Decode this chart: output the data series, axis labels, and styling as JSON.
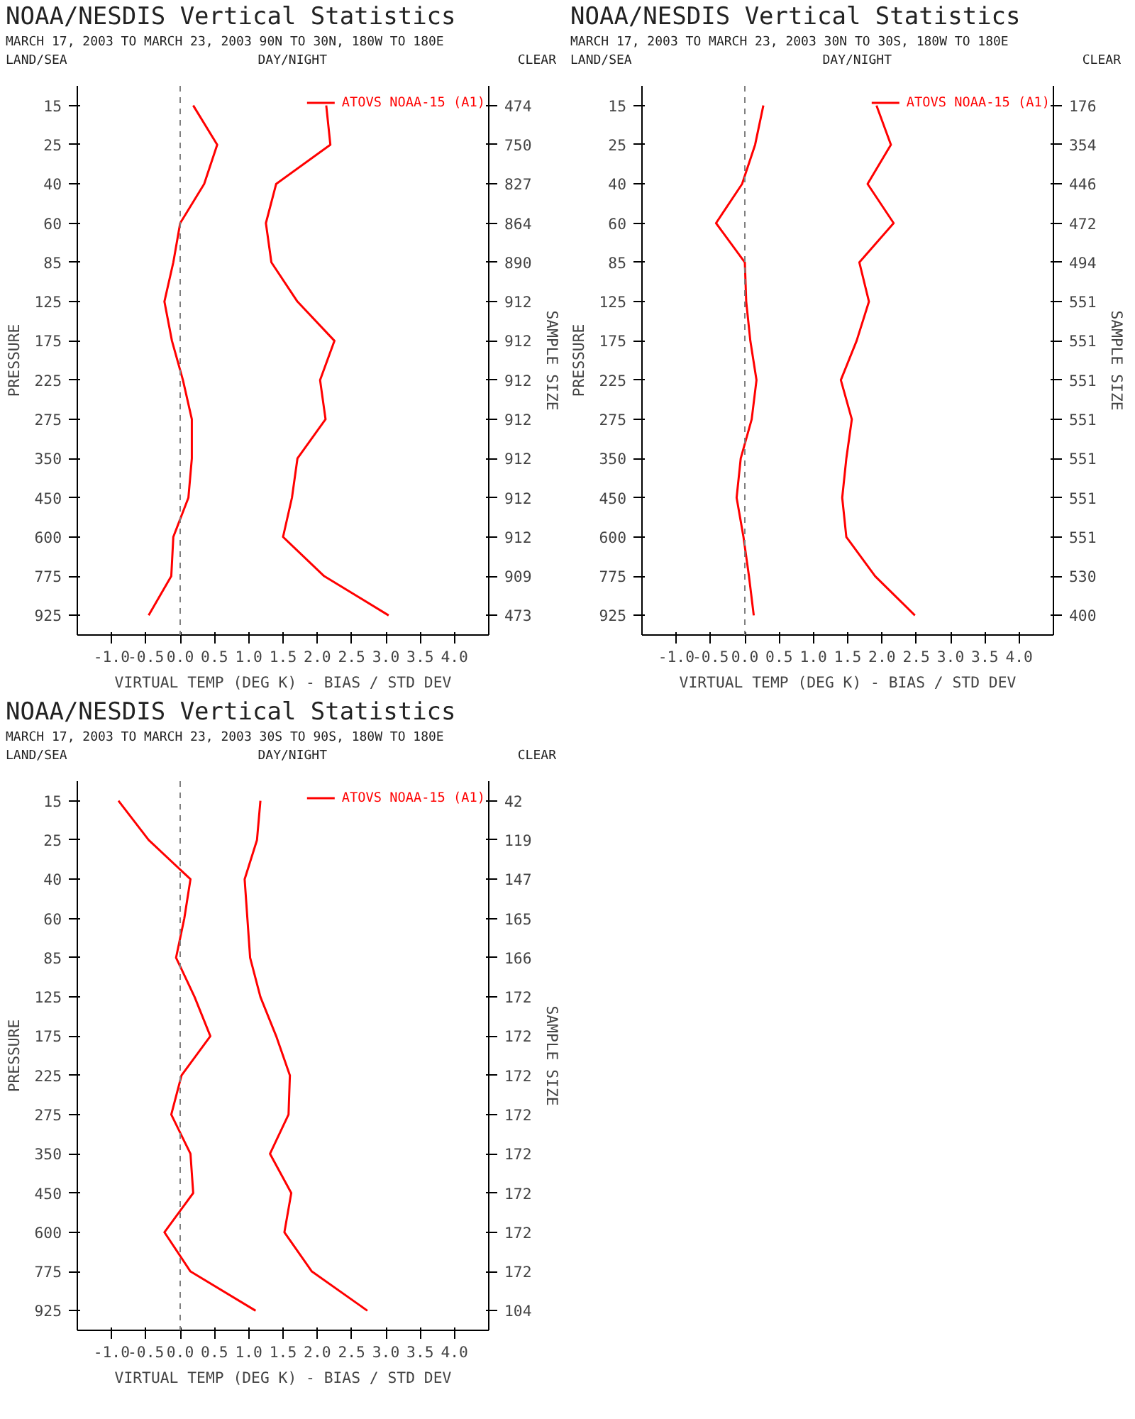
{
  "chart_data": [
    {
      "type": "line",
      "orientation": "horizontal",
      "title": "NOAA/NESDIS Vertical Statistics",
      "subtitle": "MARCH 17, 2003 TO MARCH 23, 2003    90N TO 30N, 180W TO 180E",
      "annotations": [
        "LAND/SEA",
        "DAY/NIGHT",
        "CLEAR"
      ],
      "xlabel": "VIRTUAL TEMP (DEG K) - BIAS / STD DEV",
      "ylabel": "PRESSURE",
      "y2label": "SAMPLE SIZE",
      "categories": [
        "15",
        "25",
        "40",
        "60",
        "85",
        "125",
        "175",
        "225",
        "275",
        "350",
        "450",
        "600",
        "775",
        "925"
      ],
      "y2_categories": [
        "474",
        "750",
        "827",
        "864",
        "890",
        "912",
        "912",
        "912",
        "912",
        "912",
        "912",
        "912",
        "909",
        "473"
      ],
      "xlim": [
        -1.5,
        4.5
      ],
      "xticks": [
        {
          "value": -1,
          "label": "-1.0"
        },
        -0.5,
        {
          "value": 0,
          "label": "0.0"
        },
        0.5,
        {
          "value": 1,
          "label": "1.0"
        },
        1.5,
        {
          "value": 2,
          "label": "2.0"
        },
        2.5,
        {
          "value": 3,
          "label": "3.0"
        },
        3.5,
        {
          "value": 4,
          "label": "4.0"
        }
      ],
      "ref_lines": [
        {
          "axis": "x",
          "value": 0,
          "color": "#808080",
          "line_style": "dashed"
        }
      ],
      "legend": "top right",
      "grid": false,
      "series": [
        {
          "name": "ATOVS NOAA-15 (A1)",
          "color": "#ff0000",
          "values": [
            2.13,
            2.19,
            1.4,
            1.25,
            1.33,
            1.71,
            2.25,
            2.04,
            2.12,
            1.71,
            1.63,
            1.5,
            2.1,
            3.04
          ]
        },
        {
          "color": "#ff0000",
          "values": [
            0.19,
            0.54,
            0.35,
            0.0,
            -0.1,
            -0.23,
            -0.12,
            0.04,
            0.17,
            0.17,
            0.12,
            -0.1,
            -0.13,
            -0.46
          ]
        }
      ]
    },
    {
      "type": "line",
      "orientation": "horizontal",
      "title": "NOAA/NESDIS Vertical Statistics",
      "subtitle": "MARCH 17, 2003 TO MARCH 23, 2003    30N TO 30S, 180W TO 180E",
      "annotations": [
        "LAND/SEA",
        "DAY/NIGHT",
        "CLEAR"
      ],
      "xlabel": "VIRTUAL TEMP (DEG K) - BIAS / STD DEV",
      "ylabel": "PRESSURE",
      "y2label": "SAMPLE SIZE",
      "categories": [
        "15",
        "25",
        "40",
        "60",
        "85",
        "125",
        "175",
        "225",
        "275",
        "350",
        "450",
        "600",
        "775",
        "925"
      ],
      "y2_categories": [
        "176",
        "354",
        "446",
        "472",
        "494",
        "551",
        "551",
        "551",
        "551",
        "551",
        "551",
        "551",
        "530",
        "400"
      ],
      "xlim": [
        -1.5,
        4.5
      ],
      "xticks": [
        {
          "value": -1,
          "label": "-1.0"
        },
        -0.5,
        {
          "value": 0,
          "label": "0.0"
        },
        0.5,
        {
          "value": 1,
          "label": "1.0"
        },
        1.5,
        {
          "value": 2,
          "label": "2.0"
        },
        2.5,
        {
          "value": 3,
          "label": "3.0"
        },
        3.5,
        {
          "value": 4,
          "label": "4.0"
        }
      ],
      "ref_lines": [
        {
          "axis": "x",
          "value": 0,
          "color": "#808080",
          "line_style": "dashed"
        }
      ],
      "legend": "top right",
      "grid": false,
      "series": [
        {
          "name": "ATOVS NOAA-15 (A1)",
          "color": "#ff0000",
          "values": [
            1.92,
            2.13,
            1.79,
            2.17,
            1.67,
            1.81,
            1.63,
            1.4,
            1.56,
            1.48,
            1.42,
            1.48,
            1.9,
            2.48
          ]
        },
        {
          "color": "#ff0000",
          "values": [
            0.27,
            0.15,
            -0.04,
            -0.42,
            0.0,
            0.02,
            0.08,
            0.17,
            0.1,
            -0.06,
            -0.12,
            -0.02,
            0.06,
            0.13
          ]
        }
      ]
    },
    {
      "type": "line",
      "orientation": "horizontal",
      "title": "NOAA/NESDIS Vertical Statistics",
      "subtitle": "MARCH 17, 2003 TO MARCH 23, 2003    30S TO 90S, 180W TO 180E",
      "annotations": [
        "LAND/SEA",
        "DAY/NIGHT",
        "CLEAR"
      ],
      "xlabel": "VIRTUAL TEMP (DEG K) - BIAS / STD DEV",
      "ylabel": "PRESSURE",
      "y2label": "SAMPLE SIZE",
      "categories": [
        "15",
        "25",
        "40",
        "60",
        "85",
        "125",
        "175",
        "225",
        "275",
        "350",
        "450",
        "600",
        "775",
        "925"
      ],
      "y2_categories": [
        "42",
        "119",
        "147",
        "165",
        "166",
        "172",
        "172",
        "172",
        "172",
        "172",
        "172",
        "172",
        "172",
        "104"
      ],
      "xlim": [
        -1.5,
        4.5
      ],
      "xticks": [
        {
          "value": -1,
          "label": "-1.0"
        },
        -0.5,
        {
          "value": 0,
          "label": "0.0"
        },
        0.5,
        {
          "value": 1,
          "label": "1.0"
        },
        1.5,
        {
          "value": 2,
          "label": "2.0"
        },
        2.5,
        {
          "value": 3,
          "label": "3.0"
        },
        3.5,
        {
          "value": 4,
          "label": "4.0"
        }
      ],
      "ref_lines": [
        {
          "axis": "x",
          "value": 0,
          "color": "#808080",
          "line_style": "dashed"
        }
      ],
      "legend": "top right",
      "grid": false,
      "series": [
        {
          "name": "ATOVS NOAA-15 (A1)",
          "color": "#ff0000",
          "values": [
            1.17,
            1.12,
            0.94,
            0.98,
            1.02,
            1.17,
            1.4,
            1.6,
            1.58,
            1.31,
            1.62,
            1.52,
            1.92,
            2.73
          ]
        },
        {
          "color": "#ff0000",
          "values": [
            -0.9,
            -0.46,
            0.15,
            0.06,
            -0.06,
            0.21,
            0.44,
            0.02,
            -0.13,
            0.15,
            0.19,
            -0.23,
            0.15,
            1.1
          ]
        }
      ]
    }
  ]
}
